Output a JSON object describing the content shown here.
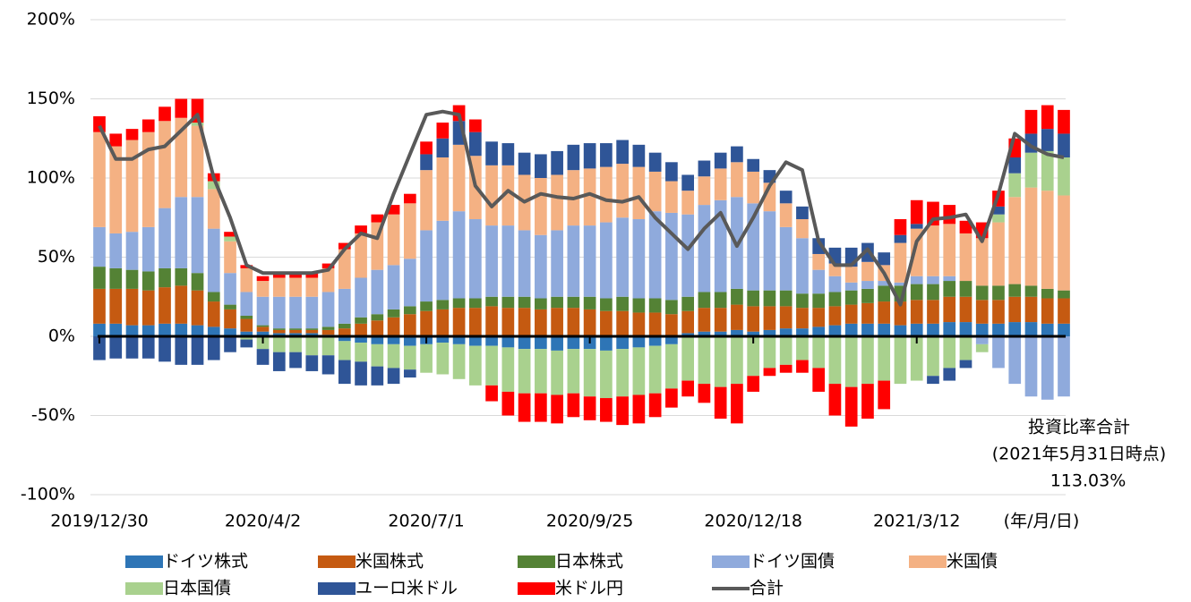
{
  "chart_data": {
    "type": "bar",
    "stacked": true,
    "categories": [
      "2019/12/30",
      null,
      null,
      null,
      null,
      null,
      null,
      null,
      null,
      null,
      "2020/4/2",
      null,
      null,
      null,
      null,
      null,
      null,
      null,
      null,
      null,
      "2020/7/1",
      null,
      null,
      null,
      null,
      null,
      null,
      null,
      null,
      null,
      "2020/9/25",
      null,
      null,
      null,
      null,
      null,
      null,
      null,
      null,
      null,
      "2020/12/18",
      null,
      null,
      null,
      null,
      null,
      null,
      null,
      null,
      null,
      "2021/3/12",
      null,
      null,
      null,
      null,
      null,
      null,
      null,
      null,
      null
    ],
    "x_unit_label": "(年/月/日)",
    "ylim": [
      -100,
      200
    ],
    "yticks": [
      {
        "value": -100,
        "label": "-100%"
      },
      {
        "value": -50,
        "label": "-50%"
      },
      {
        "value": 0,
        "label": "0%"
      },
      {
        "value": 50,
        "label": "50%"
      },
      {
        "value": 100,
        "label": "100%"
      },
      {
        "value": 150,
        "label": "150%"
      },
      {
        "value": 200,
        "label": "200%"
      }
    ],
    "grid": true,
    "annotation": [
      "投資比率合計",
      "(2021年5月31日時点)",
      "113.03%"
    ],
    "series": [
      {
        "name": "ドイツ株式",
        "type": "bar",
        "color": "#2e75b6",
        "values": [
          8,
          8,
          7,
          7,
          8,
          8,
          7,
          6,
          5,
          3,
          3,
          2,
          2,
          2,
          1,
          -3,
          -4,
          -5,
          -5,
          -6,
          -5,
          -4,
          -5,
          -6,
          -6,
          -7,
          -8,
          -8,
          -9,
          -8,
          -8,
          -9,
          -8,
          -7,
          -6,
          -5,
          2,
          3,
          3,
          4,
          3,
          4,
          5,
          5,
          6,
          7,
          8,
          8,
          8,
          7,
          8,
          8,
          9,
          9,
          8,
          8,
          9,
          9,
          8,
          8
        ]
      },
      {
        "name": "米国株式",
        "type": "bar",
        "color": "#c55a11",
        "values": [
          22,
          22,
          23,
          22,
          23,
          24,
          22,
          16,
          12,
          8,
          3,
          2,
          2,
          2,
          3,
          5,
          8,
          10,
          12,
          14,
          16,
          17,
          18,
          18,
          19,
          18,
          18,
          17,
          18,
          18,
          17,
          16,
          16,
          15,
          15,
          14,
          14,
          15,
          15,
          16,
          16,
          15,
          14,
          13,
          12,
          12,
          12,
          13,
          14,
          15,
          15,
          15,
          16,
          16,
          15,
          15,
          16,
          16,
          16,
          16
        ]
      },
      {
        "name": "日本株式",
        "type": "bar",
        "color": "#548235",
        "values": [
          14,
          13,
          12,
          12,
          12,
          11,
          11,
          6,
          3,
          2,
          1,
          1,
          1,
          1,
          2,
          3,
          4,
          4,
          5,
          5,
          6,
          6,
          6,
          6,
          6,
          7,
          7,
          7,
          7,
          7,
          8,
          8,
          9,
          9,
          9,
          9,
          9,
          10,
          10,
          10,
          10,
          10,
          10,
          9,
          9,
          9,
          9,
          9,
          10,
          10,
          10,
          10,
          10,
          10,
          9,
          9,
          8,
          7,
          6,
          5
        ]
      },
      {
        "name": "ドイツ国債",
        "type": "bar",
        "color": "#8faadc",
        "values": [
          25,
          22,
          24,
          28,
          38,
          45,
          48,
          40,
          20,
          15,
          18,
          20,
          20,
          20,
          22,
          22,
          25,
          28,
          28,
          30,
          45,
          50,
          55,
          50,
          45,
          45,
          42,
          40,
          42,
          45,
          45,
          48,
          50,
          50,
          55,
          55,
          52,
          55,
          58,
          58,
          55,
          50,
          40,
          35,
          15,
          10,
          5,
          5,
          3,
          2,
          5,
          5,
          3,
          0,
          -5,
          -20,
          -30,
          -38,
          -40,
          -38
        ]
      },
      {
        "name": "米国債",
        "type": "bar",
        "color": "#f4b183",
        "values": [
          60,
          55,
          58,
          60,
          55,
          50,
          45,
          25,
          20,
          15,
          10,
          12,
          12,
          12,
          15,
          25,
          28,
          30,
          32,
          35,
          38,
          40,
          42,
          40,
          38,
          38,
          35,
          36,
          35,
          35,
          36,
          35,
          34,
          33,
          25,
          20,
          15,
          18,
          20,
          22,
          20,
          18,
          15,
          12,
          10,
          8,
          10,
          12,
          10,
          25,
          30,
          32,
          33,
          30,
          30,
          40,
          55,
          62,
          62,
          60
        ]
      },
      {
        "name": "日本国債",
        "type": "bar",
        "color": "#a9d18e",
        "values": [
          0,
          0,
          0,
          0,
          0,
          0,
          2,
          5,
          3,
          -2,
          -8,
          -10,
          -10,
          -12,
          -12,
          -12,
          -12,
          -14,
          -15,
          -15,
          -18,
          -20,
          -22,
          -25,
          -25,
          -28,
          -28,
          -28,
          -28,
          -28,
          -30,
          -30,
          -30,
          -30,
          -30,
          -28,
          -28,
          -30,
          -32,
          -30,
          -25,
          -20,
          -18,
          -15,
          -20,
          -30,
          -32,
          -30,
          -28,
          -30,
          -28,
          -25,
          -20,
          -15,
          -5,
          5,
          15,
          22,
          25,
          24
        ]
      },
      {
        "name": "ユーロ米ドル",
        "type": "bar",
        "color": "#2f5597",
        "values": [
          -15,
          -14,
          -14,
          -14,
          -16,
          -18,
          -18,
          -15,
          -10,
          -5,
          -10,
          -12,
          -10,
          -10,
          -12,
          -15,
          -15,
          -12,
          -10,
          -5,
          10,
          12,
          15,
          15,
          15,
          14,
          14,
          15,
          15,
          16,
          16,
          15,
          15,
          14,
          12,
          12,
          10,
          10,
          10,
          10,
          8,
          8,
          8,
          8,
          10,
          10,
          12,
          12,
          8,
          5,
          3,
          -5,
          -8,
          -5,
          0,
          5,
          10,
          12,
          14,
          15
        ]
      },
      {
        "name": "米ドル円",
        "type": "bar",
        "color": "#ff0000",
        "values": [
          10,
          8,
          7,
          8,
          9,
          12,
          15,
          5,
          3,
          2,
          3,
          3,
          3,
          3,
          3,
          4,
          5,
          5,
          6,
          6,
          8,
          10,
          10,
          8,
          -10,
          -15,
          -18,
          -18,
          -18,
          -15,
          -15,
          -15,
          -18,
          -18,
          -15,
          -12,
          -10,
          -12,
          -20,
          -25,
          -10,
          -5,
          -5,
          -8,
          -15,
          -20,
          -25,
          -22,
          -18,
          10,
          15,
          15,
          12,
          8,
          10,
          10,
          12,
          15,
          15,
          15
        ]
      },
      {
        "name": "合計",
        "type": "line",
        "color": "#595959",
        "values": [
          133,
          112,
          112,
          118,
          120,
          130,
          140,
          100,
          75,
          45,
          40,
          40,
          40,
          40,
          42,
          55,
          65,
          62,
          90,
          115,
          140,
          142,
          140,
          95,
          82,
          92,
          85,
          90,
          88,
          87,
          90,
          86,
          85,
          88,
          75,
          65,
          55,
          68,
          78,
          57,
          75,
          95,
          110,
          105,
          60,
          45,
          45,
          55,
          40,
          20,
          60,
          74,
          75,
          77,
          60,
          90,
          128,
          120,
          115,
          113
        ]
      }
    ]
  }
}
